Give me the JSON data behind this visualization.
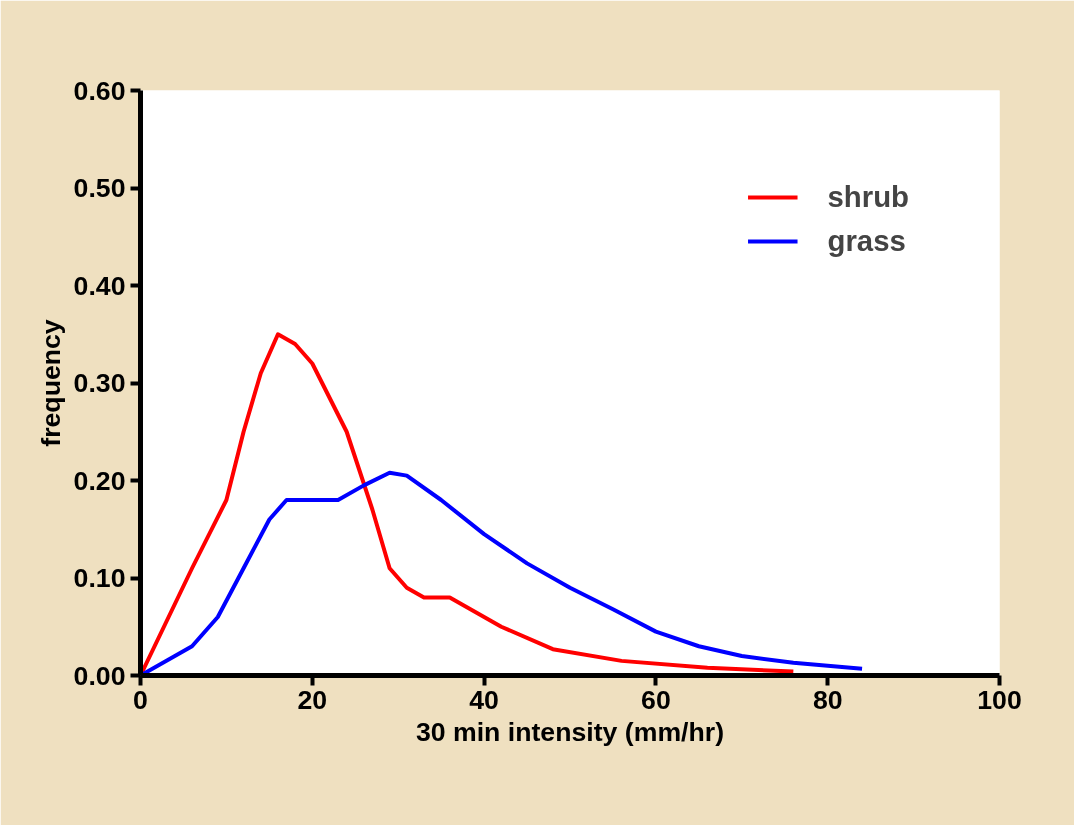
{
  "chart_data": {
    "type": "line",
    "xlabel": "30 min intensity (mm/hr)",
    "ylabel": "frequency",
    "xlim": [
      0,
      100
    ],
    "xticks": [
      0,
      20,
      40,
      60,
      80,
      100
    ],
    "ylim": [
      0,
      0.6
    ],
    "yticks": [
      {
        "value": 0,
        "label": "0.00"
      },
      {
        "value": 0.1,
        "label": "0.10"
      },
      {
        "value": 0.2,
        "label": "0.20"
      },
      {
        "value": 0.3,
        "label": "0.30"
      },
      {
        "value": 0.4,
        "label": "0.40"
      },
      {
        "value": 0.5,
        "label": "0.50"
      },
      {
        "value": 0.6,
        "label": "0.60"
      }
    ],
    "grid": false,
    "legend": "top right",
    "marker": "none",
    "line_style": "solid",
    "series": [
      {
        "name": "shrub",
        "color": "#ff0000",
        "x": [
          0,
          6,
          10,
          12,
          14,
          16,
          18,
          20,
          24,
          27,
          29,
          31,
          33,
          36,
          38,
          42,
          48,
          56,
          66,
          76
        ],
        "values": [
          0,
          0.11,
          0.18,
          0.25,
          0.31,
          0.35,
          0.34,
          0.32,
          0.25,
          0.17,
          0.11,
          0.09,
          0.08,
          0.08,
          0.07,
          0.05,
          0.027,
          0.015,
          0.008,
          0.004
        ]
      },
      {
        "name": "grass",
        "color": "#0000ff",
        "x": [
          0,
          6,
          9,
          12,
          15,
          17,
          20,
          23,
          26,
          29,
          31,
          35,
          40,
          45,
          50,
          55,
          60,
          65,
          70,
          76,
          84
        ],
        "values": [
          0,
          0.03,
          0.06,
          0.11,
          0.16,
          0.18,
          0.18,
          0.18,
          0.195,
          0.208,
          0.205,
          0.18,
          0.145,
          0.115,
          0.09,
          0.068,
          0.045,
          0.03,
          0.02,
          0.013,
          0.007
        ]
      }
    ]
  }
}
